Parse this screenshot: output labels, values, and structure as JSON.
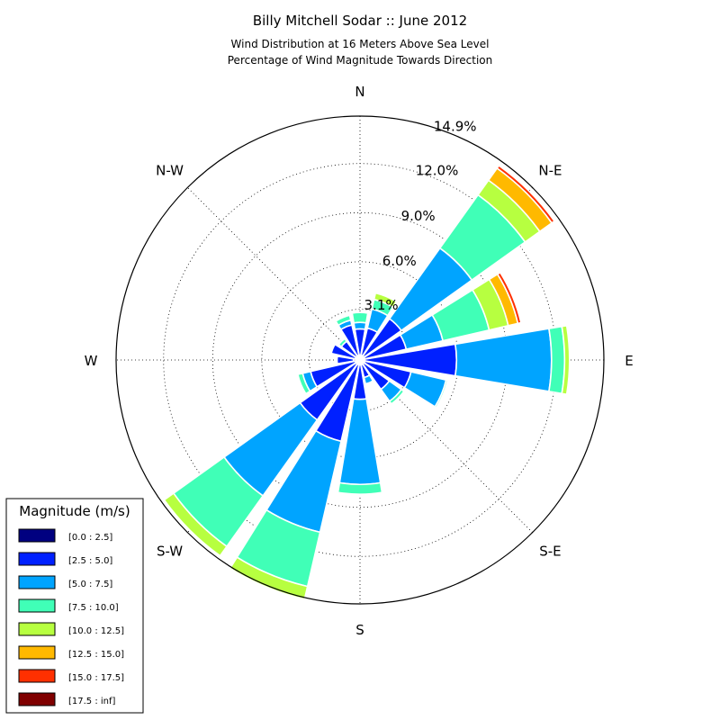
{
  "chart_data": {
    "type": "windrose",
    "title": "Billy Mitchell Sodar :: June 2012",
    "subtitle_lines": [
      "Wind Distribution at 16 Meters Above Sea Level",
      "Percentage of Wind Magnitude Towards Direction"
    ],
    "directions": [
      "N",
      "NNE",
      "NE",
      "ENE",
      "E",
      "ESE",
      "SE",
      "SSE",
      "S",
      "SSW",
      "SW",
      "WSW",
      "W",
      "WNW",
      "NW",
      "NNW"
    ],
    "direction_labels": [
      "N",
      "N-E",
      "E",
      "S-E",
      "S",
      "S-W",
      "W",
      "N-W"
    ],
    "radial_tick_labels": [
      "3.1%",
      "6.0%",
      "9.0%",
      "12.0%",
      "14.9%"
    ],
    "radial_ticks": [
      3.1,
      6.0,
      9.0,
      12.0,
      14.9
    ],
    "rmax": 14.9,
    "units": "%",
    "legend": {
      "title": "Magnitude (m/s)",
      "placement": "bottom-left",
      "bins": [
        "[0.0 : 2.5]",
        "[2.5 : 5.0]",
        "[5.0 : 7.5]",
        "[7.5 : 10.0]",
        "[10.0 : 12.5]",
        "[12.5 : 15.0]",
        "[15.0 : 17.5]",
        "[17.5 : inf]"
      ],
      "colors": [
        "#000080",
        "#0020ff",
        "#00a4ff",
        "#40ffb7",
        "#b7ff40",
        "#ffb900",
        "#ff3000",
        "#800000"
      ]
    },
    "series": [
      {
        "name": "[0.0 : 2.5]",
        "values": [
          0.3,
          0.3,
          0.3,
          0.3,
          0.3,
          0.3,
          0.3,
          0.3,
          0.3,
          0.3,
          0.3,
          0.3,
          0.4,
          0.3,
          0.3,
          0.3
        ]
      },
      {
        "name": "[2.5 : 5.0]",
        "values": [
          1.6,
          1.7,
          2.8,
          2.6,
          5.6,
          2.9,
          1.9,
          0.8,
          2.1,
          4.8,
          4.2,
          2.8,
          1.0,
          1.5,
          1.1,
          1.9
        ]
      },
      {
        "name": "[5.0 : 7.5]",
        "values": [
          0.4,
          1.2,
          5.3,
          2.3,
          5.8,
          2.2,
          0.9,
          0.4,
          5.2,
          5.7,
          5.7,
          0.5,
          0.0,
          0.0,
          0.0,
          0.3
        ]
      },
      {
        "name": "[7.5 : 10.0]",
        "values": [
          0.6,
          0.6,
          4.0,
          2.9,
          0.8,
          0.1,
          0.2,
          0.0,
          0.6,
          3.4,
          3.8,
          0.3,
          0.0,
          0.0,
          0.2,
          0.3
        ]
      },
      {
        "name": "[10.0 : 12.5]",
        "values": [
          0.0,
          0.4,
          1.1,
          1.2,
          0.3,
          0.0,
          0.0,
          0.0,
          0.0,
          0.8,
          0.7,
          0.0,
          0.0,
          0.0,
          0.0,
          0.0
        ]
      },
      {
        "name": "[12.5 : 15.0]",
        "values": [
          0.0,
          0.0,
          0.9,
          0.6,
          0.0,
          0.0,
          0.0,
          0.0,
          0.0,
          0.0,
          0.0,
          0.0,
          0.0,
          0.0,
          0.0,
          0.0
        ]
      },
      {
        "name": "[15.0 : 17.5]",
        "values": [
          0.0,
          0.0,
          0.2,
          0.2,
          0.0,
          0.0,
          0.0,
          0.0,
          0.0,
          0.0,
          0.0,
          0.0,
          0.0,
          0.0,
          0.0,
          0.0
        ]
      },
      {
        "name": "[17.5 : inf]",
        "values": [
          0.0,
          0.0,
          0.0,
          0.0,
          0.0,
          0.0,
          0.0,
          0.0,
          0.0,
          0.0,
          0.0,
          0.0,
          0.0,
          0.0,
          0.0,
          0.0
        ]
      }
    ]
  }
}
